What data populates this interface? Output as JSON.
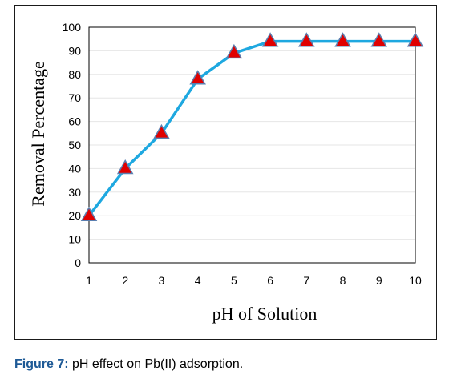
{
  "chart_data": {
    "type": "line",
    "title": "",
    "xlabel": "pH of Solution",
    "ylabel": "Removal Percentage",
    "x": [
      1,
      2,
      3,
      4,
      5,
      6,
      7,
      8,
      9,
      10
    ],
    "series": [
      {
        "values": [
          20,
          40,
          55,
          78,
          89,
          94,
          94,
          94,
          94,
          94
        ]
      }
    ],
    "xlim": [
      1,
      10
    ],
    "ylim": [
      0,
      100
    ],
    "yticks": [
      0,
      10,
      20,
      30,
      40,
      50,
      60,
      70,
      80,
      90,
      100
    ],
    "xticks": [
      1,
      2,
      3,
      4,
      5,
      6,
      7,
      8,
      9,
      10
    ],
    "grid": "horizontal",
    "legend": "none",
    "marker": "triangle",
    "line_color": "#1ea8e0",
    "marker_fill": "#e00000",
    "marker_edge": "#5b7fb0"
  },
  "caption": {
    "label": "Figure 7:",
    "text": " pH effect on Pb(II) adsorption."
  }
}
